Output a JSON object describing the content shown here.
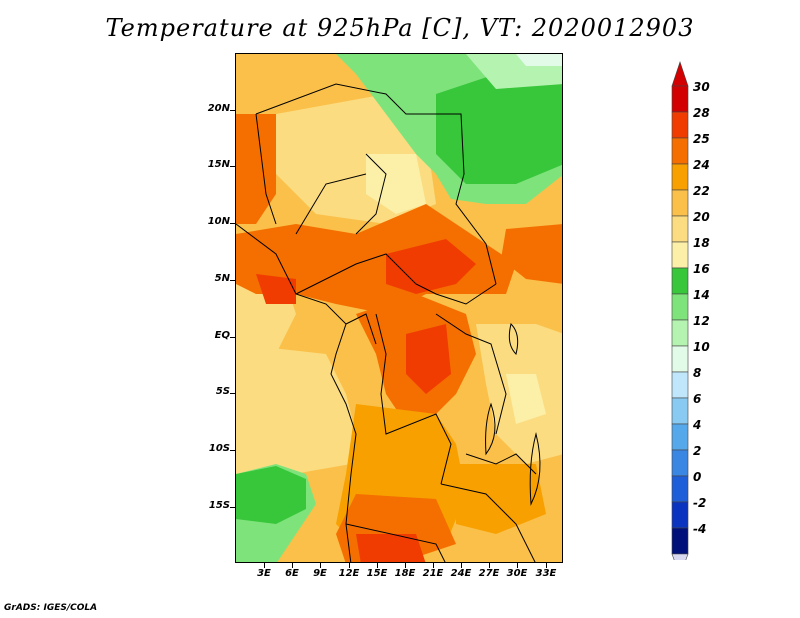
{
  "title": "Temperature at 925hPa [C], VT: 2020012903",
  "y_axis_labels": [
    "20N",
    "15N",
    "10N",
    "5N",
    "EQ",
    "5S",
    "10S",
    "15S"
  ],
  "x_axis_labels": [
    "3E",
    "6E",
    "9E",
    "12E",
    "15E",
    "18E",
    "21E",
    "24E",
    "27E",
    "30E",
    "33E"
  ],
  "colorbar": {
    "labels": [
      "30",
      "28",
      "25",
      "24",
      "22",
      "20",
      "18",
      "16",
      "14",
      "12",
      "10",
      "8",
      "6",
      "4",
      "2",
      "0",
      "-2",
      "-4"
    ],
    "colors": [
      "#d20000",
      "#f03c00",
      "#f56e00",
      "#f7a000",
      "#fac04a",
      "#fbdc80",
      "#fcf0a8",
      "#38c63a",
      "#7fe37c",
      "#b4f4b0",
      "#e2fbe8",
      "#bfe6fa",
      "#88caf2",
      "#55a8ea",
      "#3a86e3",
      "#1e5ed9",
      "#0a34c0",
      "#00107a"
    ]
  },
  "credit": "GrADS: IGES/COLA"
}
